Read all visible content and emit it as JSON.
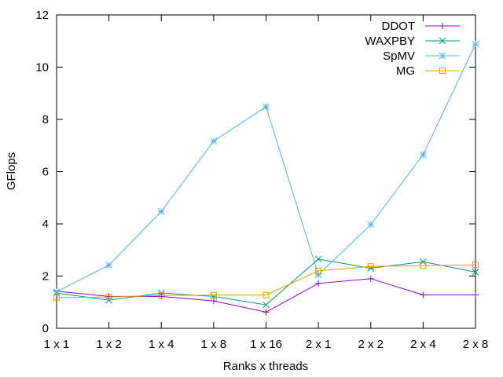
{
  "chart_data": {
    "type": "line",
    "title": "",
    "xlabel": "Ranks x threads",
    "ylabel": "GFlops",
    "categories": [
      "1 x 1",
      "1 x 2",
      "1 x 4",
      "1 x 8",
      "1 x 16",
      "2 x 1",
      "2 x 2",
      "2 x 4",
      "2 x 8"
    ],
    "ylim": [
      0,
      12
    ],
    "yticks": [
      "0",
      "2",
      "4",
      "6",
      "8",
      "10",
      "12"
    ],
    "grid": false,
    "legend_position": "top-right",
    "series": [
      {
        "name": "DDOT",
        "color": "#9400d3",
        "marker": "plus",
        "values": [
          1.42,
          1.22,
          1.22,
          1.05,
          0.62,
          1.72,
          1.9,
          1.28,
          1.28
        ]
      },
      {
        "name": "WAXPBY",
        "color": "#009e73",
        "marker": "cross",
        "values": [
          1.35,
          1.08,
          1.35,
          1.22,
          0.9,
          2.65,
          2.3,
          2.55,
          2.15
        ]
      },
      {
        "name": "SpMV",
        "color": "#56b4e9",
        "marker": "star",
        "values": [
          1.4,
          2.42,
          4.47,
          7.17,
          8.48,
          2.05,
          3.97,
          6.65,
          10.88
        ]
      },
      {
        "name": "MG",
        "color": "#e69f00",
        "marker": "square",
        "values": [
          1.18,
          1.2,
          1.26,
          1.27,
          1.27,
          2.2,
          2.37,
          2.4,
          2.43
        ]
      }
    ]
  }
}
